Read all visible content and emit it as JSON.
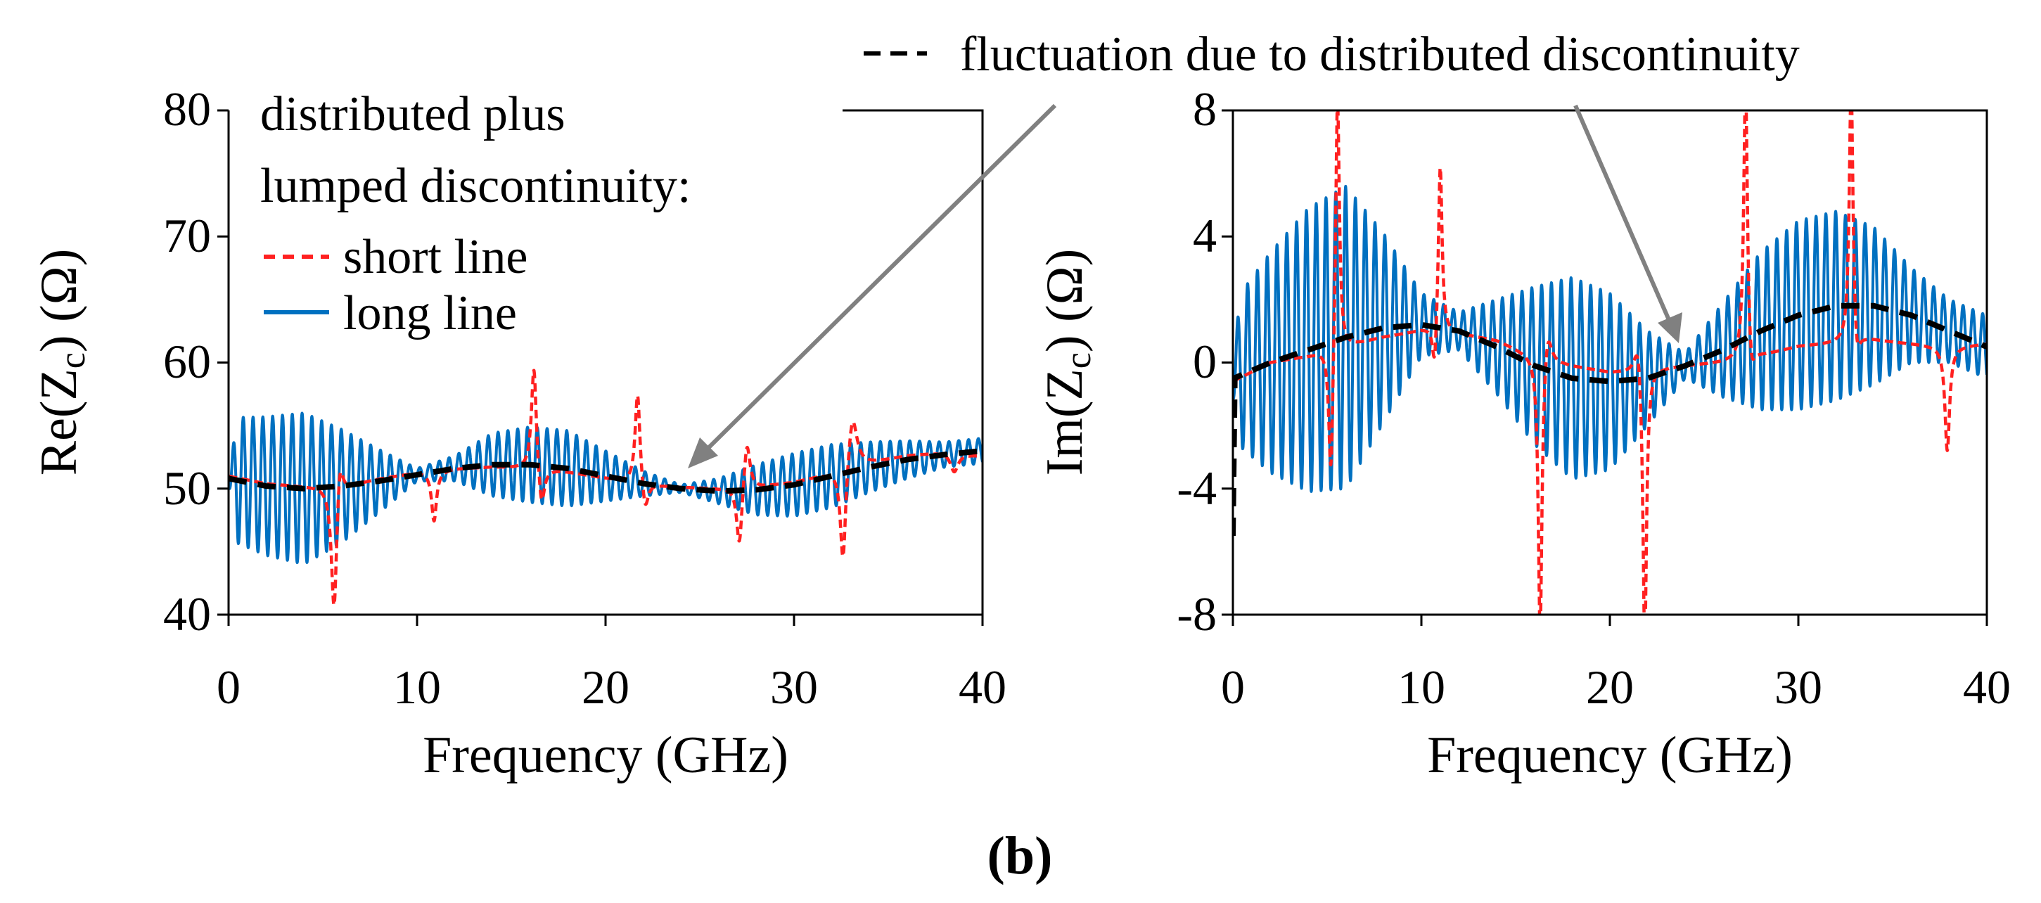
{
  "panel_label": "(b)",
  "annotation": {
    "label": "fluctuation due to distributed discontinuity",
    "color": "#808080"
  },
  "legend": {
    "title_line1": "distributed plus",
    "title_line2": "lumped discontinuity:",
    "entries": [
      {
        "label": "short line",
        "color": "#ff2020",
        "style": "dashed"
      },
      {
        "label": "long line",
        "color": "#0070c0",
        "style": "solid"
      }
    ]
  },
  "series_colors": {
    "short": "#ff2020",
    "long": "#0070c0",
    "fluct": "#000000"
  },
  "chart_data": [
    {
      "type": "line",
      "id": "re",
      "title": "",
      "xlabel": "Frequency (GHz)",
      "ylabel_pre": "Re(Z",
      "ylabel_sub": "c",
      "ylabel_post": ") (Ω)",
      "xlim": [
        0,
        40
      ],
      "ylim": [
        40,
        80
      ],
      "xticks": [
        0,
        10,
        20,
        30,
        40
      ],
      "yticks": [
        40,
        50,
        60,
        70,
        80
      ],
      "ytick_labels": [
        "40",
        "50",
        "60",
        "70",
        "80"
      ],
      "series": [
        {
          "name": "fluctuation due to distributed discontinuity",
          "key": "fluct",
          "x": [
            0,
            2,
            4,
            6,
            8,
            10,
            12,
            14,
            16,
            18,
            20,
            22,
            24,
            26,
            28,
            30,
            32,
            34,
            36,
            38,
            40
          ],
          "y": [
            50.8,
            50.2,
            50.0,
            50.2,
            50.6,
            51.1,
            51.6,
            51.9,
            51.9,
            51.6,
            51.0,
            50.4,
            50.0,
            49.8,
            49.9,
            50.3,
            51.0,
            51.7,
            52.3,
            52.7,
            53.0
          ]
        },
        {
          "name": "long line",
          "key": "long",
          "osc_period": 0.52,
          "x": [
            0,
            2,
            4,
            6,
            8,
            10,
            12,
            14,
            16,
            18,
            20,
            22,
            24,
            26,
            28,
            30,
            32,
            34,
            36,
            38,
            40
          ],
          "y": [
            50.8,
            50.2,
            50.0,
            50.2,
            50.6,
            51.1,
            51.6,
            51.9,
            51.9,
            51.6,
            51.0,
            50.4,
            50.0,
            49.8,
            49.9,
            50.3,
            51.0,
            51.7,
            52.3,
            52.7,
            53.0
          ],
          "amp_x": [
            0,
            0.5,
            2,
            4,
            6,
            8,
            10,
            12,
            14,
            16,
            18,
            20,
            22,
            24,
            26,
            28,
            30,
            32,
            34,
            36,
            38,
            40
          ],
          "amp": [
            0.5,
            5,
            5.5,
            6,
            4.5,
            2.5,
            0.5,
            1,
            2.5,
            3,
            3,
            2,
            1,
            0.3,
            1,
            2,
            2.5,
            2.5,
            2,
            1.5,
            1,
            1
          ]
        },
        {
          "name": "short line",
          "key": "short",
          "x": [
            0,
            2,
            4,
            6,
            8,
            10,
            12,
            14,
            16,
            18,
            20,
            22,
            24,
            26,
            28,
            30,
            32,
            34,
            36,
            38,
            40
          ],
          "y": [
            51.0,
            50.4,
            50.2,
            50.2,
            50.8,
            51.3,
            51.6,
            51.7,
            51.6,
            51.3,
            50.8,
            50.3,
            50.1,
            50.0,
            50.1,
            50.5,
            51.2,
            52.0,
            52.6,
            52.9,
            52.6
          ],
          "features": [
            {
              "f0": 5.6,
              "amp": -10.5,
              "w": 0.18
            },
            {
              "f0": 5.9,
              "amp": 3.5,
              "w": 0.2
            },
            {
              "f0": 10.9,
              "amp": -4.0,
              "w": 0.16
            },
            {
              "f0": 16.2,
              "amp": 8.5,
              "w": 0.16
            },
            {
              "f0": 16.6,
              "amp": -3.5,
              "w": 0.2
            },
            {
              "f0": 21.7,
              "amp": 7.5,
              "w": 0.16
            },
            {
              "f0": 22.1,
              "amp": -2.5,
              "w": 0.2
            },
            {
              "f0": 27.1,
              "amp": -5.0,
              "w": 0.18
            },
            {
              "f0": 27.5,
              "amp": 4.0,
              "w": 0.2
            },
            {
              "f0": 32.6,
              "amp": -8.0,
              "w": 0.18
            },
            {
              "f0": 33.1,
              "amp": 4.5,
              "w": 0.3
            },
            {
              "f0": 38.5,
              "amp": -1.5,
              "w": 0.25
            }
          ]
        }
      ]
    },
    {
      "type": "line",
      "id": "im",
      "title": "",
      "xlabel": "Frequency (GHz)",
      "ylabel_pre": "Im(Z",
      "ylabel_sub": "c",
      "ylabel_post": ") (Ω)",
      "xlim": [
        0,
        40
      ],
      "ylim": [
        -8,
        8
      ],
      "xticks": [
        0,
        10,
        20,
        30,
        40
      ],
      "yticks": [
        -8,
        -4,
        0,
        4,
        8
      ],
      "ytick_labels": [
        "-8",
        "-4",
        "0",
        "4",
        "8"
      ],
      "series": [
        {
          "name": "fluctuation due to distributed discontinuity",
          "key": "fluct",
          "x": [
            0,
            0.05,
            2,
            4,
            6,
            8,
            10,
            12,
            14,
            16,
            18,
            20,
            22,
            24,
            26,
            28,
            30,
            32,
            34,
            36,
            38,
            40
          ],
          "y": [
            -5.5,
            -0.5,
            0.0,
            0.4,
            0.8,
            1.1,
            1.2,
            1.0,
            0.5,
            -0.1,
            -0.5,
            -0.6,
            -0.5,
            -0.1,
            0.4,
            1.0,
            1.5,
            1.8,
            1.8,
            1.5,
            1.0,
            0.5
          ]
        },
        {
          "name": "long line",
          "key": "long",
          "osc_period": 0.52,
          "x": [
            0,
            2,
            4,
            6,
            8,
            10,
            12,
            14,
            16,
            18,
            20,
            22,
            24,
            26,
            28,
            30,
            32,
            34,
            36,
            38,
            40
          ],
          "y": [
            -0.3,
            0.0,
            0.4,
            0.8,
            1.1,
            1.2,
            1.0,
            0.5,
            -0.1,
            -0.5,
            -0.6,
            -0.5,
            -0.1,
            0.4,
            1.0,
            1.5,
            1.8,
            1.8,
            1.5,
            1.0,
            0.5
          ],
          "amp_x": [
            0,
            0.5,
            2,
            4,
            6,
            8,
            10,
            12,
            14,
            16,
            18,
            20,
            22,
            24,
            26,
            28,
            30,
            32,
            34,
            36,
            38,
            40
          ],
          "amp": [
            0.8,
            2.5,
            3.5,
            4.5,
            4.8,
            3.0,
            1.0,
            0.6,
            1.5,
            2.5,
            3.2,
            2.8,
            1.5,
            0.4,
            1.5,
            2.5,
            3.0,
            3.0,
            2.5,
            1.5,
            1.0,
            1.0
          ]
        },
        {
          "name": "short line",
          "key": "short",
          "x": [
            0,
            2,
            4,
            6,
            8,
            10,
            12,
            14,
            16,
            18,
            20,
            22,
            24,
            26,
            28,
            30,
            32,
            34,
            36,
            38,
            40
          ],
          "y": [
            -0.6,
            0.0,
            0.2,
            0.5,
            0.8,
            1.0,
            0.9,
            0.7,
            0.2,
            -0.1,
            -0.3,
            -0.2,
            -0.1,
            0.0,
            0.2,
            0.5,
            0.6,
            0.7,
            0.6,
            0.5,
            0.6
          ],
          "features": [
            {
              "f0": 5.2,
              "amp": -4.5,
              "w": 0.14
            },
            {
              "f0": 5.55,
              "amp": 8.5,
              "w": 0.12
            },
            {
              "f0": 10.7,
              "amp": -1.5,
              "w": 0.14
            },
            {
              "f0": 11.0,
              "amp": 5.5,
              "w": 0.12
            },
            {
              "f0": 16.3,
              "amp": -9.0,
              "w": 0.12
            },
            {
              "f0": 16.7,
              "amp": 1.2,
              "w": 0.25
            },
            {
              "f0": 21.5,
              "amp": 1.2,
              "w": 0.25
            },
            {
              "f0": 21.85,
              "amp": -9.0,
              "w": 0.12
            },
            {
              "f0": 27.2,
              "amp": 9.0,
              "w": 0.12
            },
            {
              "f0": 27.5,
              "amp": -1.0,
              "w": 0.2
            },
            {
              "f0": 32.8,
              "amp": 8.5,
              "w": 0.12
            },
            {
              "f0": 33.1,
              "amp": -1.0,
              "w": 0.2
            },
            {
              "f0": 37.9,
              "amp": -3.3,
              "w": 0.15
            }
          ]
        }
      ]
    }
  ]
}
